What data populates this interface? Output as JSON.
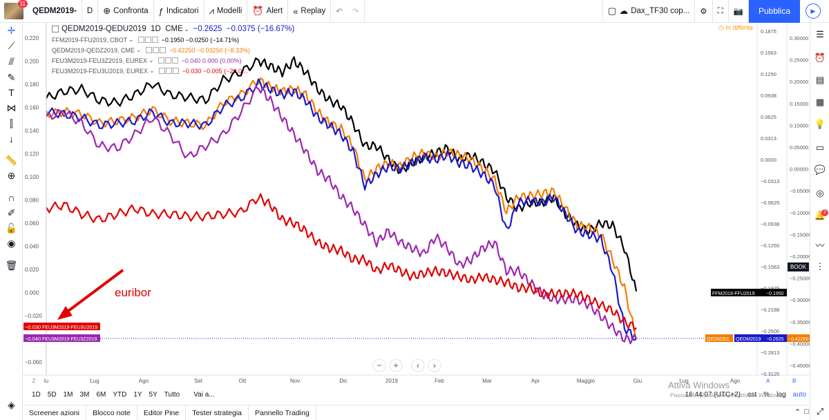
{
  "toolbar": {
    "avatar_badge": "11",
    "symbol": "QEDM2019-",
    "interval": "D",
    "compare_label": "Confronta",
    "indicators_label": "Indicatori",
    "models_label": "Modelli",
    "alert_label": "Alert",
    "replay_label": "Replay",
    "layout_name": "Dax_TF30 cop...",
    "publish_label": "Pubblica"
  },
  "legend": {
    "main": {
      "symbol": "QEDM2019-QEDU2019",
      "interval": "1D",
      "exchange": "CME",
      "value": "−0.2625",
      "change": "−0.0375",
      "pct": "(−16.67%)"
    },
    "rows": [
      {
        "symbol": "FFM2019-FFU2019, CBOT",
        "value": "−0.1950",
        "change": "−0.0250",
        "pct": "(−14.71%)",
        "color": "#000000"
      },
      {
        "symbol": "QEDM2019-QEDZ2019, CME",
        "value": "−0.42250",
        "change": "−0.03250",
        "pct": "(−8.33%)",
        "color": "#f57c00"
      },
      {
        "symbol": "FEU3M2019-FEU3Z2019, EUREX",
        "value": "−0.040",
        "change": "0.000",
        "pct": "(0.00%)",
        "color": "#9c27b0"
      },
      {
        "symbol": "FEU3M2019-FEU3U2019, EUREX",
        "value": "−0.030",
        "change": "−0.005",
        "pct": "(−20.0…",
        "color": "#e00000"
      }
    ],
    "delay_notice": "In differita"
  },
  "annotation": {
    "text": "euribor",
    "color": "#e00000"
  },
  "left_labels": [
    {
      "value": "−0.030",
      "name": "FEU3M2019-FEU3U2019",
      "color": "#e00000"
    },
    {
      "value": "−0.040",
      "name": "FEU3M2019-FEU3Z2019",
      "color": "#9c27b0"
    }
  ],
  "right_labels": [
    {
      "name": "FFM2019-FFU2019",
      "value": "−0.1950",
      "color": "#000000"
    },
    {
      "name": "QEDM2019",
      "value": "−0.2625",
      "color": "#1a1ac8"
    },
    {
      "name": "QEDM201",
      "value": "−0.42250",
      "color": "#f57c00"
    }
  ],
  "book_label": "BOOK",
  "right_badge": "2",
  "chart_data": {
    "type": "line",
    "x_ticks": [
      "lu",
      "Lug",
      "Ago",
      "Set",
      "Ott",
      "Nov",
      "Dic",
      "2019",
      "Feb",
      "Mar",
      "Apr",
      "Maggio",
      "Giu",
      "Lug",
      "Ago"
    ],
    "y_left_ticks": [
      "0.220",
      "0.200",
      "0.180",
      "0.160",
      "0.140",
      "0.120",
      "0.100",
      "0.080",
      "0.060",
      "0.040",
      "0.020",
      "0.000",
      "−0.020",
      "−0.040",
      "−0.060"
    ],
    "y_left_range": [
      -0.065,
      0.225
    ],
    "y_mid_ticks": [
      "0.1875",
      "0.1563",
      "0.1250",
      "0.0938",
      "0.0625",
      "0.0313",
      "0.0000",
      "−0.0313",
      "−0.0625",
      "−0.0938",
      "−0.1250",
      "−0.1563",
      "−0.1875",
      "−0.2188",
      "−0.2500",
      "−0.2813",
      "−0.3125"
    ],
    "y_right_ticks": [
      "0.30000",
      "0.25000",
      "0.20000",
      "0.15000",
      "0.10000",
      "0.05000",
      "0.00000",
      "−0.05000",
      "−0.10000",
      "−0.15000",
      "−0.20000",
      "−0.25000",
      "−0.30000",
      "−0.35000",
      "−0.40000",
      "−0.45000",
      "−0.50000"
    ],
    "series": [
      {
        "name": "FFM2019-FFU2019",
        "color": "#000000",
        "points": [
          [
            0,
            0.172
          ],
          [
            0.03,
            0.178
          ],
          [
            0.06,
            0.18
          ],
          [
            0.09,
            0.17
          ],
          [
            0.12,
            0.168
          ],
          [
            0.15,
            0.175
          ],
          [
            0.18,
            0.185
          ],
          [
            0.21,
            0.175
          ],
          [
            0.24,
            0.173
          ],
          [
            0.27,
            0.17
          ],
          [
            0.3,
            0.188
          ],
          [
            0.33,
            0.195
          ],
          [
            0.36,
            0.205
          ],
          [
            0.38,
            0.2
          ],
          [
            0.4,
            0.195
          ],
          [
            0.42,
            0.205
          ],
          [
            0.44,
            0.195
          ],
          [
            0.46,
            0.18
          ],
          [
            0.48,
            0.17
          ],
          [
            0.5,
            0.165
          ],
          [
            0.52,
            0.15
          ],
          [
            0.54,
            0.13
          ],
          [
            0.56,
            0.13
          ],
          [
            0.58,
            0.118
          ],
          [
            0.6,
            0.108
          ],
          [
            0.62,
            0.115
          ],
          [
            0.64,
            0.12
          ],
          [
            0.66,
            0.124
          ],
          [
            0.68,
            0.128
          ],
          [
            0.7,
            0.118
          ],
          [
            0.72,
            0.122
          ],
          [
            0.74,
            0.115
          ],
          [
            0.76,
            0.108
          ],
          [
            0.78,
            0.085
          ],
          [
            0.8,
            0.075
          ],
          [
            0.82,
            0.08
          ],
          [
            0.84,
            0.08
          ],
          [
            0.86,
            0.085
          ],
          [
            0.88,
            0.07
          ],
          [
            0.9,
            0.06
          ],
          [
            0.92,
            0.055
          ],
          [
            0.94,
            0.062
          ],
          [
            0.96,
            0.06
          ],
          [
            0.98,
            0.04
          ],
          [
            1.0,
            0.002
          ]
        ]
      },
      {
        "name": "QEDM2019-QEDZ2019",
        "color": "#f57c00",
        "points": [
          [
            0,
            0.158
          ],
          [
            0.03,
            0.16
          ],
          [
            0.06,
            0.158
          ],
          [
            0.09,
            0.15
          ],
          [
            0.12,
            0.152
          ],
          [
            0.15,
            0.155
          ],
          [
            0.18,
            0.162
          ],
          [
            0.21,
            0.152
          ],
          [
            0.24,
            0.15
          ],
          [
            0.27,
            0.148
          ],
          [
            0.3,
            0.168
          ],
          [
            0.33,
            0.175
          ],
          [
            0.36,
            0.188
          ],
          [
            0.38,
            0.182
          ],
          [
            0.4,
            0.178
          ],
          [
            0.42,
            0.18
          ],
          [
            0.44,
            0.175
          ],
          [
            0.46,
            0.16
          ],
          [
            0.48,
            0.15
          ],
          [
            0.5,
            0.145
          ],
          [
            0.52,
            0.13
          ],
          [
            0.54,
            0.1
          ],
          [
            0.56,
            0.11
          ],
          [
            0.58,
            0.115
          ],
          [
            0.6,
            0.112
          ],
          [
            0.62,
            0.12
          ],
          [
            0.64,
            0.124
          ],
          [
            0.66,
            0.12
          ],
          [
            0.68,
            0.125
          ],
          [
            0.7,
            0.122
          ],
          [
            0.72,
            0.118
          ],
          [
            0.74,
            0.11
          ],
          [
            0.76,
            0.1
          ],
          [
            0.78,
            0.072
          ],
          [
            0.8,
            0.085
          ],
          [
            0.82,
            0.086
          ],
          [
            0.84,
            0.088
          ],
          [
            0.86,
            0.09
          ],
          [
            0.88,
            0.075
          ],
          [
            0.9,
            0.06
          ],
          [
            0.92,
            0.058
          ],
          [
            0.94,
            0.052
          ],
          [
            0.96,
            0.03
          ],
          [
            0.98,
            0.005
          ],
          [
            1.0,
            -0.04
          ]
        ]
      },
      {
        "name": "QEDM2019-QEDU2019",
        "color": "#1a1ac8",
        "points": [
          [
            0,
            0.16
          ],
          [
            0.03,
            0.158
          ],
          [
            0.06,
            0.155
          ],
          [
            0.09,
            0.148
          ],
          [
            0.12,
            0.15
          ],
          [
            0.15,
            0.152
          ],
          [
            0.18,
            0.16
          ],
          [
            0.21,
            0.15
          ],
          [
            0.24,
            0.15
          ],
          [
            0.27,
            0.148
          ],
          [
            0.3,
            0.165
          ],
          [
            0.33,
            0.172
          ],
          [
            0.36,
            0.185
          ],
          [
            0.38,
            0.18
          ],
          [
            0.4,
            0.175
          ],
          [
            0.42,
            0.178
          ],
          [
            0.44,
            0.17
          ],
          [
            0.46,
            0.155
          ],
          [
            0.48,
            0.148
          ],
          [
            0.5,
            0.14
          ],
          [
            0.52,
            0.125
          ],
          [
            0.54,
            0.095
          ],
          [
            0.56,
            0.105
          ],
          [
            0.58,
            0.112
          ],
          [
            0.6,
            0.11
          ],
          [
            0.62,
            0.115
          ],
          [
            0.64,
            0.12
          ],
          [
            0.66,
            0.118
          ],
          [
            0.68,
            0.122
          ],
          [
            0.7,
            0.115
          ],
          [
            0.72,
            0.112
          ],
          [
            0.74,
            0.105
          ],
          [
            0.76,
            0.095
          ],
          [
            0.78,
            0.055
          ],
          [
            0.8,
            0.08
          ],
          [
            0.82,
            0.082
          ],
          [
            0.84,
            0.08
          ],
          [
            0.86,
            0.085
          ],
          [
            0.88,
            0.07
          ],
          [
            0.9,
            0.055
          ],
          [
            0.92,
            0.052
          ],
          [
            0.94,
            0.048
          ],
          [
            0.96,
            0.02
          ],
          [
            0.98,
            -0.03
          ],
          [
            1.0,
            -0.04
          ]
        ]
      },
      {
        "name": "FEU3M2019-FEU3Z2019",
        "color": "#9c27b0",
        "points": [
          [
            0,
            0.155
          ],
          [
            0.03,
            0.16
          ],
          [
            0.06,
            0.15
          ],
          [
            0.09,
            0.13
          ],
          [
            0.12,
            0.128
          ],
          [
            0.15,
            0.14
          ],
          [
            0.18,
            0.155
          ],
          [
            0.21,
            0.14
          ],
          [
            0.24,
            0.12
          ],
          [
            0.27,
            0.13
          ],
          [
            0.3,
            0.14
          ],
          [
            0.33,
            0.16
          ],
          [
            0.36,
            0.182
          ],
          [
            0.38,
            0.17
          ],
          [
            0.4,
            0.155
          ],
          [
            0.42,
            0.14
          ],
          [
            0.44,
            0.125
          ],
          [
            0.46,
            0.108
          ],
          [
            0.48,
            0.1
          ],
          [
            0.5,
            0.085
          ],
          [
            0.52,
            0.075
          ],
          [
            0.54,
            0.06
          ],
          [
            0.56,
            0.045
          ],
          [
            0.58,
            0.055
          ],
          [
            0.6,
            0.045
          ],
          [
            0.62,
            0.04
          ],
          [
            0.64,
            0.035
          ],
          [
            0.66,
            0.05
          ],
          [
            0.68,
            0.04
          ],
          [
            0.7,
            0.025
          ],
          [
            0.72,
            0.03
          ],
          [
            0.74,
            0.04
          ],
          [
            0.76,
            0.045
          ],
          [
            0.78,
            0.02
          ],
          [
            0.8,
            0.02
          ],
          [
            0.82,
            0.01
          ],
          [
            0.84,
            0.0
          ],
          [
            0.86,
            -0.005
          ],
          [
            0.88,
            -0.005
          ],
          [
            0.9,
            -0.005
          ],
          [
            0.92,
            -0.01
          ],
          [
            0.94,
            -0.02
          ],
          [
            0.96,
            -0.03
          ],
          [
            0.98,
            -0.04
          ],
          [
            1.0,
            -0.04
          ]
        ]
      },
      {
        "name": "FEU3M2019-FEU3U2019",
        "color": "#e00000",
        "points": [
          [
            0,
            0.075
          ],
          [
            0.03,
            0.078
          ],
          [
            0.06,
            0.07
          ],
          [
            0.09,
            0.065
          ],
          [
            0.12,
            0.07
          ],
          [
            0.15,
            0.075
          ],
          [
            0.18,
            0.07
          ],
          [
            0.21,
            0.07
          ],
          [
            0.24,
            0.068
          ],
          [
            0.27,
            0.068
          ],
          [
            0.3,
            0.07
          ],
          [
            0.33,
            0.072
          ],
          [
            0.36,
            0.085
          ],
          [
            0.38,
            0.078
          ],
          [
            0.4,
            0.065
          ],
          [
            0.42,
            0.062
          ],
          [
            0.44,
            0.055
          ],
          [
            0.46,
            0.045
          ],
          [
            0.48,
            0.04
          ],
          [
            0.5,
            0.038
          ],
          [
            0.52,
            0.03
          ],
          [
            0.54,
            0.03
          ],
          [
            0.56,
            0.02
          ],
          [
            0.58,
            0.025
          ],
          [
            0.6,
            0.02
          ],
          [
            0.62,
            0.015
          ],
          [
            0.64,
            0.018
          ],
          [
            0.66,
            0.02
          ],
          [
            0.68,
            0.018
          ],
          [
            0.7,
            0.015
          ],
          [
            0.72,
            0.012
          ],
          [
            0.74,
            0.015
          ],
          [
            0.76,
            0.012
          ],
          [
            0.78,
            0.01
          ],
          [
            0.8,
            0.005
          ],
          [
            0.82,
            0.005
          ],
          [
            0.84,
            0.0
          ],
          [
            0.86,
            0.0
          ],
          [
            0.88,
            0.0
          ],
          [
            0.9,
            0.0
          ],
          [
            0.92,
            -0.005
          ],
          [
            0.94,
            -0.01
          ],
          [
            0.96,
            -0.015
          ],
          [
            0.98,
            -0.025
          ],
          [
            1.0,
            -0.03
          ]
        ]
      }
    ]
  },
  "timeframes": [
    "1D",
    "5D",
    "1M",
    "3M",
    "6M",
    "YTD",
    "1Y",
    "5Y",
    "Tutto"
  ],
  "goto_label": "Vai a...",
  "clock": "16:44:07 (UTC+2)",
  "scale_opts": [
    "est",
    "%",
    "log",
    "auto"
  ],
  "windows_activation": {
    "title": "Attiva Windows",
    "subtitle": "Passa a Impostazioni per attivare Windows."
  },
  "bottom_tabs": [
    "Screener azioni",
    "Blocco note",
    "Editor Pine",
    "Tester strategia",
    "Pannello Trading"
  ]
}
